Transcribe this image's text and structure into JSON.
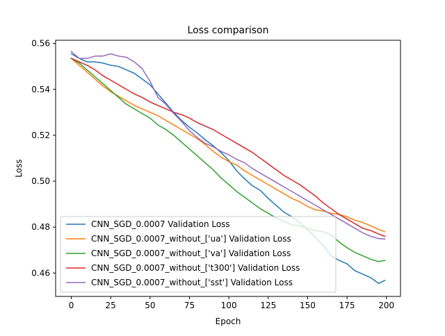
{
  "chart_data": {
    "type": "line",
    "title": "Loss comparison",
    "xlabel": "Epoch",
    "ylabel": "Loss",
    "xlim": [
      -9.95,
      208.95
    ],
    "ylim": [
      0.4498,
      0.5614
    ],
    "xticks": [
      0,
      25,
      50,
      75,
      100,
      125,
      150,
      175,
      200
    ],
    "yticks": [
      0.46,
      0.48,
      0.5,
      0.52,
      0.54,
      0.56
    ],
    "ytick_labels": [
      "0.46",
      "0.48",
      "0.50",
      "0.52",
      "0.54",
      "0.56"
    ],
    "grid": false,
    "legend_position": "lower-left",
    "series": [
      {
        "name": "CNN_SGD_0.0007 Validation Loss",
        "color": "#1f77b4",
        "x": [
          0,
          5,
          10,
          15,
          20,
          25,
          30,
          35,
          40,
          45,
          50,
          55,
          60,
          65,
          70,
          75,
          80,
          85,
          90,
          95,
          100,
          105,
          110,
          115,
          120,
          125,
          130,
          135,
          140,
          145,
          150,
          155,
          160,
          165,
          170,
          175,
          180,
          185,
          190,
          195,
          199
        ],
        "y": [
          0.5555,
          0.5535,
          0.552,
          0.552,
          0.5515,
          0.5505,
          0.55,
          0.5485,
          0.547,
          0.5445,
          0.542,
          0.538,
          0.534,
          0.53,
          0.5265,
          0.5235,
          0.521,
          0.518,
          0.5155,
          0.5125,
          0.509,
          0.5045,
          0.501,
          0.498,
          0.496,
          0.4925,
          0.4895,
          0.4865,
          0.4845,
          0.482,
          0.479,
          0.4755,
          0.472,
          0.4675,
          0.4655,
          0.464,
          0.461,
          0.4595,
          0.458,
          0.4555,
          0.4568
        ]
      },
      {
        "name": "CNN_SGD_0.0007_without_['ua'] Validation Loss",
        "color": "#ff7f0e",
        "x": [
          0,
          5,
          10,
          15,
          20,
          25,
          30,
          35,
          40,
          45,
          50,
          55,
          60,
          65,
          70,
          75,
          80,
          85,
          90,
          95,
          100,
          105,
          110,
          115,
          120,
          125,
          130,
          135,
          140,
          145,
          150,
          155,
          160,
          165,
          170,
          175,
          180,
          185,
          190,
          195,
          199
        ],
        "y": [
          0.5535,
          0.5505,
          0.5475,
          0.5445,
          0.5415,
          0.539,
          0.537,
          0.535,
          0.533,
          0.5315,
          0.53,
          0.5285,
          0.5265,
          0.5245,
          0.5225,
          0.5205,
          0.5185,
          0.516,
          0.513,
          0.5105,
          0.5085,
          0.507,
          0.5045,
          0.5025,
          0.5005,
          0.4985,
          0.4965,
          0.4945,
          0.4925,
          0.491,
          0.489,
          0.4875,
          0.487,
          0.486,
          0.4855,
          0.4845,
          0.483,
          0.482,
          0.4805,
          0.479,
          0.478
        ]
      },
      {
        "name": "CNN_SGD_0.0007_without_['va'] Validation Loss",
        "color": "#2ca02c",
        "x": [
          0,
          5,
          10,
          15,
          20,
          25,
          30,
          35,
          40,
          45,
          50,
          55,
          60,
          65,
          70,
          75,
          80,
          85,
          90,
          95,
          100,
          105,
          110,
          115,
          120,
          125,
          130,
          135,
          140,
          145,
          150,
          155,
          160,
          165,
          170,
          175,
          180,
          185,
          190,
          195,
          199
        ],
        "y": [
          0.5535,
          0.5515,
          0.5485,
          0.5455,
          0.5425,
          0.5395,
          0.5365,
          0.5335,
          0.5315,
          0.5295,
          0.5275,
          0.5245,
          0.5225,
          0.52,
          0.517,
          0.514,
          0.511,
          0.508,
          0.505,
          0.5015,
          0.4985,
          0.4955,
          0.493,
          0.4905,
          0.488,
          0.486,
          0.484,
          0.4825,
          0.481,
          0.4805,
          0.4795,
          0.4785,
          0.478,
          0.4765,
          0.4735,
          0.471,
          0.469,
          0.4675,
          0.466,
          0.465,
          0.4655
        ]
      },
      {
        "name": "CNN_SGD_0.0007_without_['t300'] Validation Loss",
        "color": "#d62728",
        "x": [
          0,
          5,
          10,
          15,
          20,
          25,
          30,
          35,
          40,
          45,
          50,
          55,
          60,
          65,
          70,
          75,
          80,
          85,
          90,
          95,
          100,
          105,
          110,
          115,
          120,
          125,
          130,
          135,
          140,
          145,
          150,
          155,
          160,
          165,
          170,
          175,
          180,
          185,
          190,
          195,
          199
        ],
        "y": [
          0.5535,
          0.552,
          0.5505,
          0.5485,
          0.546,
          0.544,
          0.542,
          0.54,
          0.538,
          0.5365,
          0.5345,
          0.533,
          0.5315,
          0.53,
          0.529,
          0.5275,
          0.5255,
          0.524,
          0.5225,
          0.5205,
          0.5185,
          0.5165,
          0.5145,
          0.5125,
          0.51,
          0.5075,
          0.505,
          0.5025,
          0.5005,
          0.4985,
          0.496,
          0.4935,
          0.4905,
          0.488,
          0.4855,
          0.4835,
          0.4815,
          0.4795,
          0.4785,
          0.477,
          0.476
        ]
      },
      {
        "name": "CNN_SGD_0.0007_without_['sst'] Validation Loss",
        "color": "#9467bd",
        "x": [
          0,
          5,
          10,
          15,
          20,
          25,
          30,
          35,
          40,
          45,
          50,
          55,
          60,
          65,
          70,
          75,
          80,
          85,
          90,
          95,
          100,
          105,
          110,
          115,
          120,
          125,
          130,
          135,
          140,
          145,
          150,
          155,
          160,
          165,
          170,
          175,
          180,
          185,
          190,
          195,
          199
        ],
        "y": [
          0.5565,
          0.5535,
          0.5535,
          0.5545,
          0.5545,
          0.5555,
          0.5545,
          0.554,
          0.552,
          0.549,
          0.5435,
          0.5365,
          0.5335,
          0.5295,
          0.526,
          0.522,
          0.519,
          0.5165,
          0.515,
          0.513,
          0.5115,
          0.5095,
          0.508,
          0.5055,
          0.5035,
          0.5015,
          0.4995,
          0.4975,
          0.4955,
          0.4935,
          0.4915,
          0.4895,
          0.4875,
          0.4855,
          0.4835,
          0.4815,
          0.4795,
          0.4775,
          0.476,
          0.475,
          0.4748
        ]
      }
    ]
  }
}
